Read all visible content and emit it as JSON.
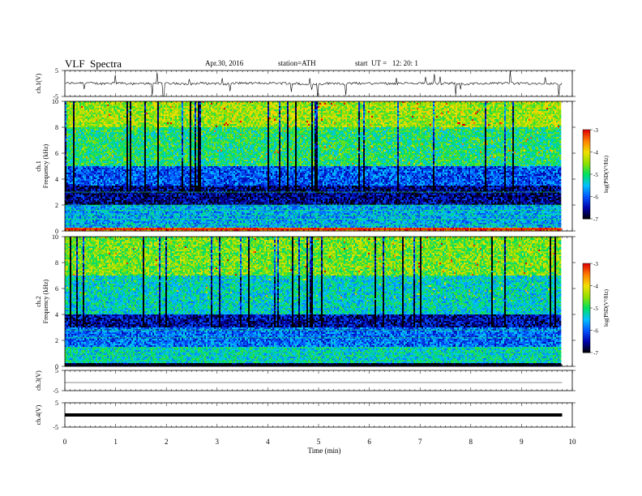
{
  "header": {
    "title": "VLF  Spectra",
    "date": "Apr.30, 2016",
    "station": "station=ATH",
    "start": "start  UT =   12: 20: 1"
  },
  "chart_data": [
    {
      "type": "line",
      "panel": "ch1-waveform",
      "ylabel": "ch.1(V)",
      "ylim": [
        -5,
        5
      ],
      "yticks": [
        "-5",
        "5"
      ],
      "x_range_min": [
        0,
        9.8
      ],
      "baseline": 0,
      "color": "#000000"
    },
    {
      "type": "heatmap",
      "panel": "ch1-spectrogram",
      "ylabel": "ch.1",
      "ylabel2": "Frequency  (kHz)",
      "ylim": [
        0,
        10
      ],
      "yticks": [
        "0",
        "2",
        "4",
        "6",
        "8",
        "10"
      ],
      "colorbar": {
        "label": "log(PSD(V²/Hz)",
        "range": [
          -7,
          -3
        ],
        "ticks": [
          "-7",
          "-6",
          "-5",
          "-4",
          "-3"
        ]
      },
      "bands": [
        {
          "fmin": 0,
          "fmax": 0.2,
          "level": -3.5
        },
        {
          "fmin": 0.2,
          "fmax": 2,
          "level": -5.6
        },
        {
          "fmin": 2,
          "fmax": 3.5,
          "level": -6.6
        },
        {
          "fmin": 3.5,
          "fmax": 5,
          "level": -6.0
        },
        {
          "fmin": 5,
          "fmax": 8,
          "level": -5.0
        },
        {
          "fmin": 8,
          "fmax": 10,
          "level": -4.4
        }
      ]
    },
    {
      "type": "heatmap",
      "panel": "ch2-spectrogram",
      "ylabel": "ch.2",
      "ylabel2": "Frequency  (kHz)",
      "ylim": [
        0,
        10
      ],
      "yticks": [
        "0",
        "2",
        "4",
        "6",
        "8",
        "10"
      ],
      "colorbar": {
        "label": "log(PSD(V²/Hz)",
        "range": [
          -7,
          -3
        ],
        "ticks": [
          "-7",
          "-6",
          "-5",
          "-4",
          "-3"
        ]
      },
      "bands": [
        {
          "fmin": 0,
          "fmax": 0.3,
          "level": -6.9
        },
        {
          "fmin": 0.3,
          "fmax": 1.5,
          "level": -5.3
        },
        {
          "fmin": 1.5,
          "fmax": 3,
          "level": -5.9
        },
        {
          "fmin": 3,
          "fmax": 4,
          "level": -6.5
        },
        {
          "fmin": 4,
          "fmax": 7,
          "level": -5.3
        },
        {
          "fmin": 7,
          "fmax": 10,
          "level": -4.6
        }
      ]
    },
    {
      "type": "line",
      "panel": "ch3-waveform",
      "ylabel": "ch.3(V)",
      "ylim": [
        -5,
        5
      ],
      "yticks": [
        "-5",
        "5"
      ],
      "baseline": -1,
      "color": "#666666"
    },
    {
      "type": "line",
      "panel": "ch4-waveform",
      "ylabel": "ch.4(V)",
      "ylim": [
        -5,
        5
      ],
      "yticks": [
        "-5",
        "5"
      ],
      "baseline": 0,
      "color": "#000000"
    }
  ],
  "xaxis": {
    "label": "Time  (min)",
    "ticks": [
      "0",
      "1",
      "2",
      "3",
      "4",
      "5",
      "6",
      "7",
      "8",
      "9",
      "10"
    ],
    "range": [
      0,
      10
    ]
  },
  "colors": {
    "scale": [
      "#000000",
      "#0000aa",
      "#0055ff",
      "#00c0ff",
      "#00e060",
      "#90e000",
      "#f0e000",
      "#ff8000",
      "#e00000"
    ]
  }
}
